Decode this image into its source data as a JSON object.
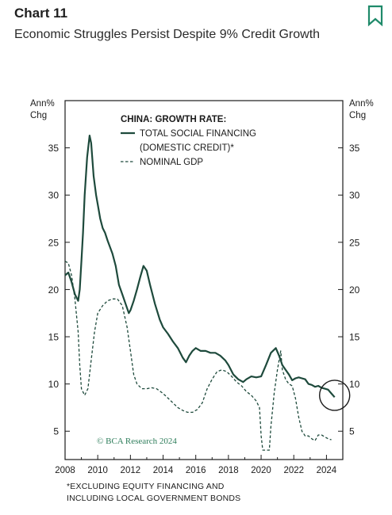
{
  "header": {
    "chart_label": "Chart 11",
    "title": "Economic Struggles Persist Despite 9% Credit Growth",
    "bookmark_icon": "bookmark-icon",
    "accent_color": "#1f8a6a"
  },
  "footnote": {
    "line1": "*EXCLUDING EQUITY FINANCING AND",
    "line2": "INCLUDING LOCAL GOVERNMENT BONDS"
  },
  "chart_data": {
    "type": "line",
    "legend_title": "CHINA: GROWTH RATE:",
    "legend_position": "top-center",
    "left_axis_unit": "Ann%\nChg",
    "right_axis_unit": "Ann%\nChg",
    "watermark": "© BCA Research 2024",
    "xlim": [
      2008,
      2025
    ],
    "ylim": [
      2,
      40
    ],
    "x_ticks": [
      2008,
      2010,
      2012,
      2014,
      2016,
      2018,
      2020,
      2022,
      2024
    ],
    "y_ticks": [
      5,
      10,
      15,
      20,
      25,
      30,
      35
    ],
    "grid": false,
    "colors": {
      "line": "#1e4a3c",
      "axis": "#1b1b1b"
    },
    "annotation": {
      "type": "circle",
      "x": 2024.5,
      "y": 8.8
    },
    "series": [
      {
        "name": "TOTAL SOCIAL FINANCING\n(DOMESTIC CREDIT)*",
        "style": "solid",
        "points": [
          [
            2008.0,
            21.5
          ],
          [
            2008.2,
            21.8
          ],
          [
            2008.4,
            20.8
          ],
          [
            2008.6,
            19.5
          ],
          [
            2008.8,
            18.8
          ],
          [
            2008.9,
            20.0
          ],
          [
            2009.0,
            23.0
          ],
          [
            2009.1,
            26.0
          ],
          [
            2009.2,
            30.0
          ],
          [
            2009.35,
            34.0
          ],
          [
            2009.5,
            36.3
          ],
          [
            2009.6,
            35.5
          ],
          [
            2009.75,
            32.0
          ],
          [
            2009.9,
            30.0
          ],
          [
            2010.0,
            29.0
          ],
          [
            2010.15,
            27.5
          ],
          [
            2010.3,
            26.5
          ],
          [
            2010.45,
            26.0
          ],
          [
            2010.6,
            25.2
          ],
          [
            2010.75,
            24.5
          ],
          [
            2010.9,
            23.8
          ],
          [
            2011.1,
            22.5
          ],
          [
            2011.3,
            20.5
          ],
          [
            2011.5,
            19.5
          ],
          [
            2011.7,
            18.5
          ],
          [
            2011.9,
            17.5
          ],
          [
            2012.0,
            17.8
          ],
          [
            2012.2,
            18.8
          ],
          [
            2012.4,
            20.0
          ],
          [
            2012.6,
            21.3
          ],
          [
            2012.8,
            22.5
          ],
          [
            2013.0,
            22.0
          ],
          [
            2013.2,
            20.5
          ],
          [
            2013.5,
            18.5
          ],
          [
            2013.8,
            16.8
          ],
          [
            2014.0,
            16.0
          ],
          [
            2014.3,
            15.3
          ],
          [
            2014.6,
            14.5
          ],
          [
            2014.9,
            13.8
          ],
          [
            2015.2,
            12.8
          ],
          [
            2015.4,
            12.3
          ],
          [
            2015.6,
            13.0
          ],
          [
            2015.8,
            13.5
          ],
          [
            2016.0,
            13.8
          ],
          [
            2016.3,
            13.5
          ],
          [
            2016.6,
            13.5
          ],
          [
            2016.9,
            13.3
          ],
          [
            2017.2,
            13.3
          ],
          [
            2017.5,
            13.0
          ],
          [
            2017.8,
            12.5
          ],
          [
            2018.0,
            12.0
          ],
          [
            2018.3,
            11.0
          ],
          [
            2018.6,
            10.5
          ],
          [
            2018.9,
            10.2
          ],
          [
            2019.1,
            10.5
          ],
          [
            2019.4,
            10.8
          ],
          [
            2019.7,
            10.7
          ],
          [
            2020.0,
            10.8
          ],
          [
            2020.3,
            12.0
          ],
          [
            2020.6,
            13.3
          ],
          [
            2020.9,
            13.8
          ],
          [
            2021.1,
            13.0
          ],
          [
            2021.3,
            12.0
          ],
          [
            2021.5,
            11.5
          ],
          [
            2021.7,
            11.0
          ],
          [
            2021.9,
            10.4
          ],
          [
            2022.1,
            10.6
          ],
          [
            2022.3,
            10.7
          ],
          [
            2022.5,
            10.6
          ],
          [
            2022.7,
            10.5
          ],
          [
            2022.9,
            10.0
          ],
          [
            2023.1,
            9.9
          ],
          [
            2023.3,
            9.7
          ],
          [
            2023.5,
            9.8
          ],
          [
            2023.7,
            9.6
          ],
          [
            2023.9,
            9.5
          ],
          [
            2024.1,
            9.4
          ],
          [
            2024.3,
            9.0
          ],
          [
            2024.5,
            8.6
          ]
        ]
      },
      {
        "name": "NOMINAL GDP",
        "style": "dashed",
        "points": [
          [
            2008.0,
            23.0
          ],
          [
            2008.2,
            22.8
          ],
          [
            2008.4,
            21.5
          ],
          [
            2008.6,
            19.0
          ],
          [
            2008.8,
            15.5
          ],
          [
            2008.9,
            12.0
          ],
          [
            2009.0,
            9.5
          ],
          [
            2009.2,
            8.8
          ],
          [
            2009.4,
            9.5
          ],
          [
            2009.6,
            12.5
          ],
          [
            2009.8,
            15.5
          ],
          [
            2010.0,
            17.5
          ],
          [
            2010.3,
            18.3
          ],
          [
            2010.6,
            18.8
          ],
          [
            2010.9,
            19.0
          ],
          [
            2011.2,
            19.0
          ],
          [
            2011.5,
            18.3
          ],
          [
            2011.8,
            16.0
          ],
          [
            2012.0,
            13.5
          ],
          [
            2012.2,
            11.0
          ],
          [
            2012.4,
            10.0
          ],
          [
            2012.7,
            9.5
          ],
          [
            2013.0,
            9.5
          ],
          [
            2013.3,
            9.6
          ],
          [
            2013.6,
            9.5
          ],
          [
            2014.0,
            9.0
          ],
          [
            2014.3,
            8.5
          ],
          [
            2014.6,
            8.0
          ],
          [
            2014.9,
            7.5
          ],
          [
            2015.2,
            7.2
          ],
          [
            2015.5,
            7.0
          ],
          [
            2015.8,
            7.0
          ],
          [
            2016.1,
            7.3
          ],
          [
            2016.4,
            8.0
          ],
          [
            2016.7,
            9.5
          ],
          [
            2017.0,
            10.5
          ],
          [
            2017.3,
            11.3
          ],
          [
            2017.6,
            11.5
          ],
          [
            2017.9,
            11.3
          ],
          [
            2018.2,
            10.8
          ],
          [
            2018.5,
            10.2
          ],
          [
            2018.8,
            9.8
          ],
          [
            2019.1,
            9.2
          ],
          [
            2019.4,
            8.8
          ],
          [
            2019.7,
            8.2
          ],
          [
            2019.9,
            7.5
          ],
          [
            2020.0,
            4.5
          ],
          [
            2020.1,
            3.0
          ],
          [
            2020.3,
            3.0
          ],
          [
            2020.5,
            3.0
          ],
          [
            2020.6,
            5.5
          ],
          [
            2020.8,
            9.0
          ],
          [
            2021.0,
            11.5
          ],
          [
            2021.2,
            13.5
          ],
          [
            2021.3,
            11.5
          ],
          [
            2021.5,
            10.5
          ],
          [
            2021.7,
            10.0
          ],
          [
            2021.9,
            9.8
          ],
          [
            2022.1,
            8.5
          ],
          [
            2022.3,
            6.5
          ],
          [
            2022.5,
            5.0
          ],
          [
            2022.7,
            4.5
          ],
          [
            2022.9,
            4.5
          ],
          [
            2023.1,
            4.2
          ],
          [
            2023.3,
            4.0
          ],
          [
            2023.5,
            4.6
          ],
          [
            2023.7,
            4.6
          ],
          [
            2023.9,
            4.4
          ],
          [
            2024.1,
            4.2
          ],
          [
            2024.3,
            4.1
          ]
        ]
      }
    ]
  }
}
